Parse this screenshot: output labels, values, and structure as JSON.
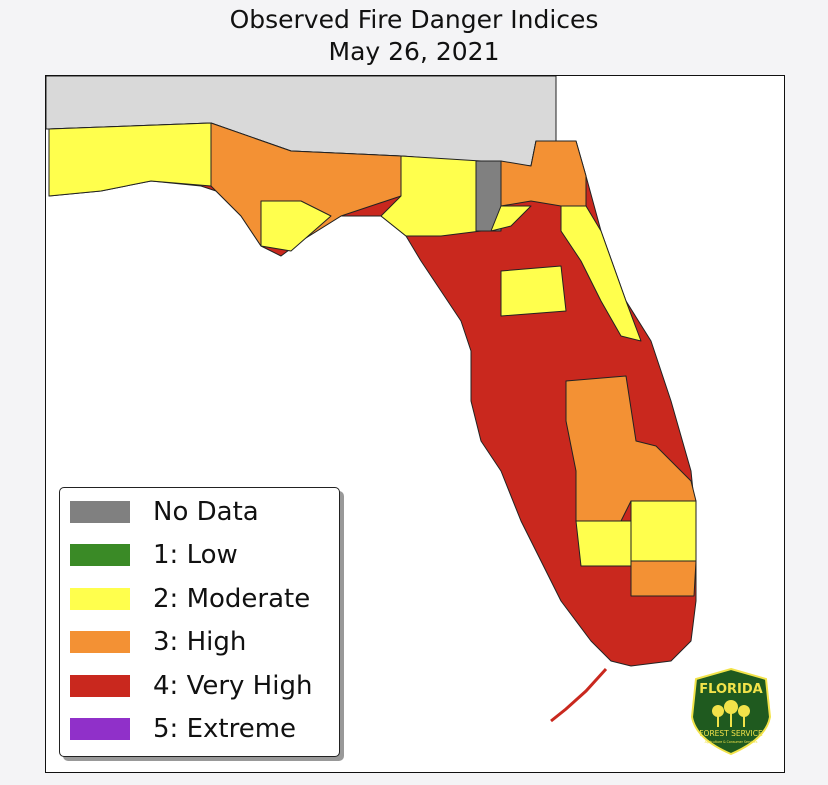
{
  "title": "Observed Fire Danger Indices",
  "date": "May 26, 2021",
  "legend": [
    {
      "label": "No Data",
      "color": "#808080"
    },
    {
      "label": "1: Low",
      "color": "#3a8a26"
    },
    {
      "label": "2: Moderate",
      "color": "#ffff4d"
    },
    {
      "label": "3: High",
      "color": "#f39134"
    },
    {
      "label": "4: Very High",
      "color": "#c9281e"
    },
    {
      "label": "5: Extreme",
      "color": "#9030c9"
    }
  ],
  "land_color": "#d9d9d9",
  "logo": {
    "name": "FLORIDA",
    "subtitle": "FOREST SERVICE",
    "tagline": "Agriculture & Consumer Services",
    "color": "#1f5a1f",
    "accent": "#f2e34a"
  }
}
